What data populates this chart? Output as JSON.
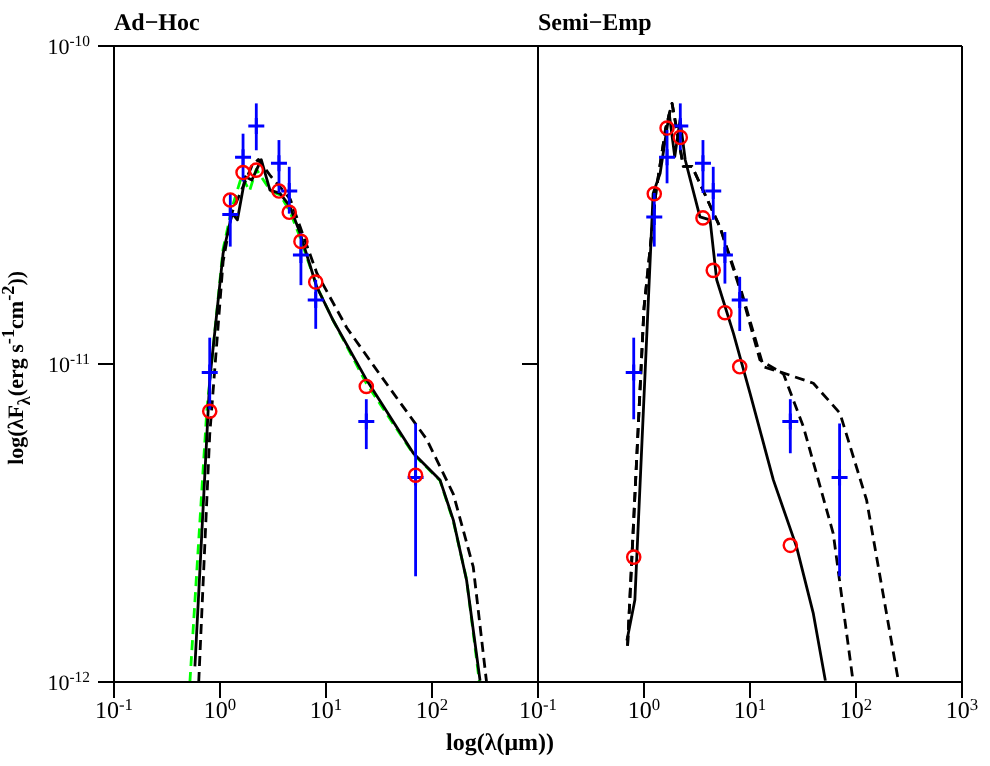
{
  "chart_data": [
    {
      "type": "line",
      "title": "Ad−Hoc",
      "xlabel": "log(λ(μm))",
      "ylabel": "log(λF$_{λ}$(erg s$^{-1}$cm$^{-2}$))",
      "log": "xy",
      "grid": false,
      "legend": false,
      "xlim": [
        0.1,
        1000
      ],
      "ylim": [
        1e-12,
        1e-10
      ],
      "xticks": [
        {
          "value": 0.1,
          "label": "10$^{-1}$"
        },
        {
          "value": 1,
          "label": "10$^{0}$"
        },
        {
          "value": 10,
          "label": "10$^{1}$"
        },
        {
          "value": 100,
          "label": "10$^{2}$"
        },
        {
          "value": 1000,
          "label": null
        }
      ],
      "yticks": [
        {
          "value": 1e-12,
          "label": "10$^{-12}$"
        },
        {
          "value": 1e-11,
          "label": "10$^{-11}$"
        },
        {
          "value": 1e-10,
          "label": "10$^{-10}$"
        }
      ],
      "series": [
        {
          "color": "#00ff00",
          "line_style": "dashed",
          "marker": "none",
          "x": [
            0.52,
            0.75,
            1.07,
            1.3,
            1.6,
            1.9,
            2.2,
            3,
            3.7,
            4.6,
            5.7,
            8.2,
            11.7,
            24,
            67,
            119,
            159,
            212,
            280
          ],
          "values": [
            1e-12,
            7.1e-12,
            2.3e-11,
            3.1e-11,
            3.9e-11,
            3.5e-11,
            4.1e-11,
            3.5e-11,
            3.4e-11,
            3e-11,
            2.5e-11,
            1.75e-11,
            1.37e-11,
            8.7e-12,
            5.2e-12,
            4.3e-12,
            3.2e-12,
            2.1e-12,
            1e-12
          ]
        },
        {
          "color": "#000000",
          "line_style": "dashed",
          "marker": "none",
          "x": [
            0.63,
            0.8,
            1.07,
            1.3,
            1.7,
            2.0,
            2.3,
            3.0,
            3.7,
            4.6,
            5.7,
            8.2,
            15.7,
            32,
            89,
            159,
            245,
            327
          ],
          "values": [
            1e-12,
            6e-12,
            2.1e-11,
            3e-11,
            3.7e-11,
            4.2e-11,
            4.4e-11,
            3.9e-11,
            3.6e-11,
            3.3e-11,
            2.7e-11,
            1.93e-11,
            1.3e-11,
            9.3e-12,
            5.8e-12,
            3.9e-12,
            2.3e-12,
            1e-12
          ]
        },
        {
          "color": "#000000",
          "line_style": "solid",
          "marker": "none",
          "x": [
            0.58,
            0.8,
            1.07,
            1.3,
            1.46,
            1.73,
            2.0,
            2.45,
            2.96,
            3.68,
            4.57,
            5.69,
            8.17,
            11.7,
            24.2,
            66.7,
            119,
            159,
            212,
            284
          ],
          "values": [
            1.12e-12,
            8.9e-12,
            2.23e-11,
            2.98e-11,
            2.84e-11,
            3.88e-11,
            3.79e-11,
            4.39e-11,
            3.52e-11,
            3.44e-11,
            3.13e-11,
            2.58e-11,
            1.75e-11,
            1.37e-11,
            8.9e-12,
            5.24e-12,
            4.32e-12,
            3.23e-12,
            2.09e-12,
            1.01e-12
          ]
        },
        {
          "type": "scatter",
          "color": "#0000ff",
          "marker": "cross",
          "x": [
            0.8,
            1.25,
            1.65,
            2.2,
            3.6,
            4.5,
            5.8,
            8.0,
            24,
            70
          ],
          "values": [
            9.4e-12,
            2.95e-11,
            4.47e-11,
            5.6e-11,
            4.28e-11,
            3.5e-11,
            2.2e-11,
            1.59e-11,
            6.6e-12,
            4.4e-12
          ],
          "errors": [
            [
              7.2e-12,
              1.21e-11
            ],
            [
              2.34e-11,
              3.45e-11
            ],
            [
              3.75e-11,
              5.3e-11
            ],
            [
              4.7e-11,
              6.6e-11
            ],
            [
              3.45e-11,
              5.06e-11
            ],
            [
              2.97e-11,
              4.17e-11
            ],
            [
              1.77e-11,
              2.58e-11
            ],
            [
              1.29e-11,
              1.84e-11
            ],
            [
              5.4e-12,
              7.75e-12
            ],
            [
              2.15e-12,
              6.5e-12
            ]
          ]
        },
        {
          "type": "scatter",
          "color": "#ff0000",
          "marker": "circle",
          "x": [
            0.8,
            1.25,
            1.65,
            2.2,
            3.6,
            4.5,
            5.8,
            8.0,
            24,
            70
          ],
          "values": [
            7.1e-12,
            3.28e-11,
            4e-11,
            4.07e-11,
            3.5e-11,
            3e-11,
            2.43e-11,
            1.81e-11,
            8.5e-12,
            4.47e-12
          ]
        }
      ]
    },
    {
      "type": "line",
      "title": "Semi−Emp",
      "log": "xy",
      "grid": false,
      "legend": false,
      "tick_labels": "x",
      "xlim": [
        0.1,
        1000
      ],
      "ylim": [
        1e-12,
        1e-10
      ],
      "xticks": [
        {
          "value": 0.1,
          "label": "10$^{-1}$"
        },
        {
          "value": 1,
          "label": "10$^{0}$"
        },
        {
          "value": 10,
          "label": "10$^{1}$"
        },
        {
          "value": 100,
          "label": "10$^{2}$"
        },
        {
          "value": 1000,
          "label": "10$^{3}$"
        }
      ],
      "yticks": [
        {
          "value": 1e-12,
          "label": null
        },
        {
          "value": 1e-11,
          "label": null
        },
        {
          "value": 1e-10,
          "label": null
        }
      ],
      "series": [
        {
          "color": "#000000",
          "line_style": "dashed",
          "marker": "none",
          "x": [
            0.7,
            1.0,
            1.3,
            1.6,
            1.84,
            2.35,
            2.84,
            5.2,
            8.05,
            13.4,
            22.1,
            39.6,
            70.6,
            126,
            252
          ],
          "values": [
            1.3e-12,
            1.5e-11,
            3.5e-11,
            5.5e-11,
            6.6e-11,
            4.18e-11,
            4.18e-11,
            2.7e-11,
            1.75e-11,
            9.8e-12,
            9.3e-12,
            8.7e-12,
            7e-12,
            3.73e-12,
            1e-12
          ]
        },
        {
          "color": "#000000",
          "line_style": "dashed",
          "marker": "none",
          "x": [
            0.7,
            1.0,
            1.3,
            1.6,
            1.84,
            2.35,
            2.84,
            5.2,
            8.65,
            12.4,
            20.7,
            31.9,
            61,
            94
          ],
          "values": [
            1.3e-12,
            1.5e-11,
            3.5e-11,
            5.5e-11,
            6.6e-11,
            4.18e-11,
            4.18e-11,
            2.7e-11,
            1.59e-11,
            1.03e-11,
            9.3e-12,
            6.35e-12,
            2.93e-12,
            1e-12
          ]
        },
        {
          "color": "#000000",
          "line_style": "solid",
          "marker": "none",
          "x": [
            0.69,
            0.82,
            1.22,
            1.42,
            1.73,
            1.95,
            2.19,
            2.45,
            3.37,
            4.2,
            4.85,
            6.97,
            10,
            16.6,
            27.5,
            39.6,
            51.4
          ],
          "values": [
            1.35e-12,
            1.81e-12,
            3.44e-11,
            3.98e-11,
            6.13e-11,
            4.49e-11,
            5.85e-11,
            4.38e-11,
            2.9e-11,
            2.84e-11,
            1.84e-11,
            1.25e-11,
            8.1e-12,
            4.32e-12,
            2.66e-12,
            1.64e-12,
            1.01e-12
          ]
        },
        {
          "type": "scatter",
          "color": "#0000ff",
          "marker": "cross",
          "x": [
            0.8,
            1.25,
            1.65,
            2.2,
            3.6,
            4.5,
            5.8,
            8.0,
            24,
            70
          ],
          "values": [
            9.4e-12,
            2.9e-11,
            4.47e-11,
            5.6e-11,
            4.28e-11,
            3.5e-11,
            2.2e-11,
            1.59e-11,
            6.6e-12,
            4.4e-12
          ],
          "errors": [
            [
              6.7e-12,
              1.21e-11
            ],
            [
              2.34e-11,
              3.45e-11
            ],
            [
              3.7e-11,
              5.44e-11
            ],
            [
              4.7e-11,
              6.6e-11
            ],
            [
              3.45e-11,
              5.06e-11
            ],
            [
              2.84e-11,
              4.17e-11
            ],
            [
              1.79e-11,
              2.6e-11
            ],
            [
              1.27e-11,
              1.88e-11
            ],
            [
              5.24e-12,
              7.75e-12
            ],
            [
              2.15e-12,
              6.5e-12
            ]
          ]
        },
        {
          "type": "scatter",
          "color": "#ff0000",
          "marker": "circle",
          "x": [
            0.8,
            1.25,
            1.65,
            2.2,
            3.6,
            4.5,
            5.8,
            8.0,
            24
          ],
          "values": [
            2.47e-12,
            3.43e-11,
            5.52e-11,
            5.16e-11,
            2.88e-11,
            1.97e-11,
            1.45e-11,
            9.8e-12,
            2.69e-12
          ]
        }
      ]
    }
  ]
}
